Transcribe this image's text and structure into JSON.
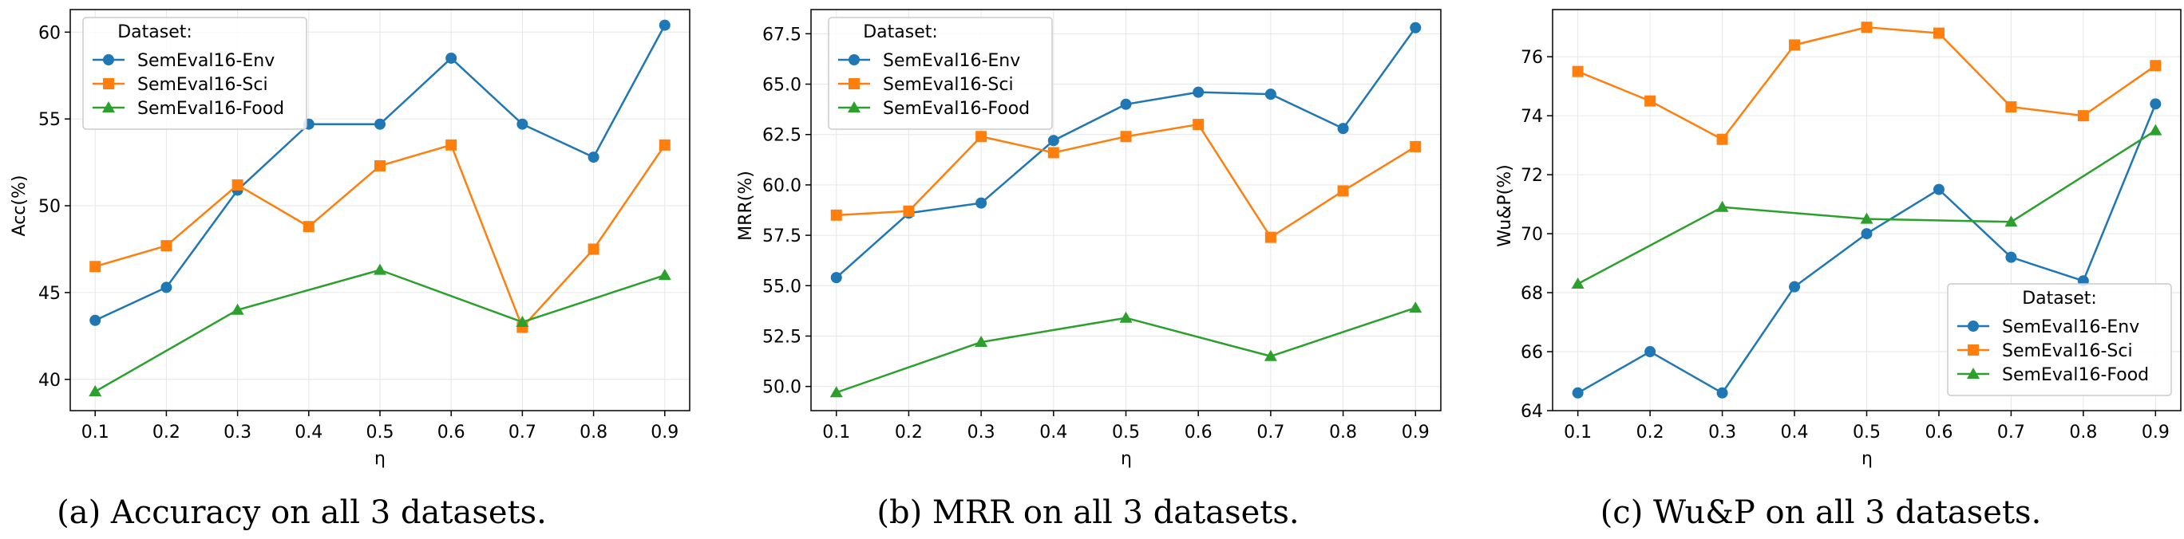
{
  "colors": {
    "env": "#1f77b4",
    "sci": "#ff7f0e",
    "food": "#2ca02c",
    "grid": "#e6e6e6"
  },
  "chart_data": [
    {
      "type": "line",
      "caption": "(a) Accuracy on all 3 datasets.",
      "xlabel": "η",
      "ylabel": "Acc(%)",
      "x": [
        0.1,
        0.2,
        0.3,
        0.4,
        0.5,
        0.6,
        0.7,
        0.8,
        0.9
      ],
      "x_ticks": [
        "0.1",
        "0.2",
        "0.3",
        "0.4",
        "0.5",
        "0.6",
        "0.7",
        "0.8",
        "0.9"
      ],
      "xlim": [
        0.065,
        0.935
      ],
      "ylim": [
        38.2,
        61.3
      ],
      "y_ticks": [
        "40",
        "45",
        "50",
        "55",
        "60"
      ],
      "y_tick_values": [
        40,
        45,
        50,
        55,
        60
      ],
      "grid": true,
      "legend": {
        "title": "Dataset:",
        "position": "top-left"
      },
      "series": [
        {
          "name": "SemEval16-Env",
          "marker": "circle",
          "color": "#1f77b4",
          "values": [
            43.4,
            45.3,
            50.9,
            54.7,
            54.7,
            58.5,
            54.7,
            52.8,
            60.4
          ]
        },
        {
          "name": "SemEval16-Sci",
          "marker": "square",
          "color": "#ff7f0e",
          "values": [
            46.5,
            47.7,
            51.2,
            48.8,
            52.3,
            53.5,
            43.0,
            47.5,
            53.5
          ]
        },
        {
          "name": "SemEval16-Food",
          "marker": "triangle",
          "color": "#2ca02c",
          "values": [
            39.3,
            null,
            44.0,
            null,
            46.3,
            null,
            43.3,
            null,
            46.0
          ]
        }
      ]
    },
    {
      "type": "line",
      "caption": "(b) MRR on all 3 datasets.",
      "xlabel": "η",
      "ylabel": "MRR(%)",
      "x": [
        0.1,
        0.2,
        0.3,
        0.4,
        0.5,
        0.6,
        0.7,
        0.8,
        0.9
      ],
      "x_ticks": [
        "0.1",
        "0.2",
        "0.3",
        "0.4",
        "0.5",
        "0.6",
        "0.7",
        "0.8",
        "0.9"
      ],
      "xlim": [
        0.065,
        0.935
      ],
      "ylim": [
        48.8,
        68.7
      ],
      "y_ticks": [
        "50.0",
        "52.5",
        "55.0",
        "57.5",
        "60.0",
        "62.5",
        "65.0",
        "67.5"
      ],
      "y_tick_values": [
        50.0,
        52.5,
        55.0,
        57.5,
        60.0,
        62.5,
        65.0,
        67.5
      ],
      "grid": true,
      "legend": {
        "title": "Dataset:",
        "position": "top-left"
      },
      "series": [
        {
          "name": "SemEval16-Env",
          "marker": "circle",
          "color": "#1f77b4",
          "values": [
            55.4,
            58.6,
            59.1,
            62.2,
            64.0,
            64.6,
            64.5,
            62.8,
            67.8
          ]
        },
        {
          "name": "SemEval16-Sci",
          "marker": "square",
          "color": "#ff7f0e",
          "values": [
            58.5,
            58.7,
            62.4,
            61.6,
            62.4,
            63.0,
            57.4,
            59.7,
            61.9
          ]
        },
        {
          "name": "SemEval16-Food",
          "marker": "triangle",
          "color": "#2ca02c",
          "values": [
            49.7,
            null,
            52.2,
            null,
            53.4,
            null,
            51.5,
            null,
            53.9
          ]
        }
      ]
    },
    {
      "type": "line",
      "caption": "(c) Wu&P on all 3 datasets.",
      "xlabel": "η",
      "ylabel": "Wu&P(%)",
      "x": [
        0.1,
        0.2,
        0.3,
        0.4,
        0.5,
        0.6,
        0.7,
        0.8,
        0.9
      ],
      "x_ticks": [
        "0.1",
        "0.2",
        "0.3",
        "0.4",
        "0.5",
        "0.6",
        "0.7",
        "0.8",
        "0.9"
      ],
      "xlim": [
        0.065,
        0.935
      ],
      "ylim": [
        64.0,
        77.6
      ],
      "y_ticks": [
        "64",
        "66",
        "68",
        "70",
        "72",
        "74",
        "76"
      ],
      "y_tick_values": [
        64,
        66,
        68,
        70,
        72,
        74,
        76
      ],
      "grid": true,
      "legend": {
        "title": "Dataset:",
        "position": "bottom-right"
      },
      "series": [
        {
          "name": "SemEval16-Env",
          "marker": "circle",
          "color": "#1f77b4",
          "values": [
            64.6,
            66.0,
            64.6,
            68.2,
            70.0,
            71.5,
            69.2,
            68.4,
            74.4
          ]
        },
        {
          "name": "SemEval16-Sci",
          "marker": "square",
          "color": "#ff7f0e",
          "values": [
            75.5,
            74.5,
            73.2,
            76.4,
            77.0,
            76.8,
            74.3,
            74.0,
            75.7
          ]
        },
        {
          "name": "SemEval16-Food",
          "marker": "triangle",
          "color": "#2ca02c",
          "values": [
            68.3,
            null,
            70.9,
            null,
            70.5,
            null,
            70.4,
            null,
            73.5
          ]
        }
      ]
    }
  ]
}
